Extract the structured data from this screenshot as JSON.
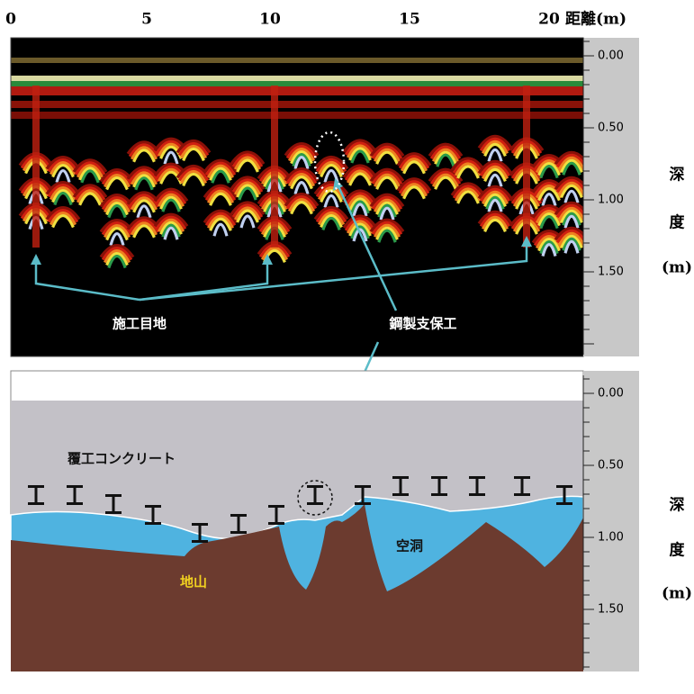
{
  "distance_axis": {
    "labels": [
      "0",
      "5",
      "10",
      "15",
      "20"
    ],
    "title": "距離(m)"
  },
  "radar_panel": {
    "depth_ticks": [
      "0.00",
      "0.50",
      "1.00",
      "1.50"
    ],
    "depth_label": [
      "深",
      "度",
      "(m)"
    ],
    "annotations": {
      "joint": "施工目地",
      "steel_support": "鋼製支保工"
    }
  },
  "interpretation_panel": {
    "depth_ticks": [
      "0.00",
      "0.50",
      "1.00",
      "1.50"
    ],
    "depth_label": [
      "深",
      "度",
      "(m)"
    ],
    "labels": {
      "lining": "覆工コンクリート",
      "cavity": "空洞",
      "ground": "地山"
    }
  }
}
